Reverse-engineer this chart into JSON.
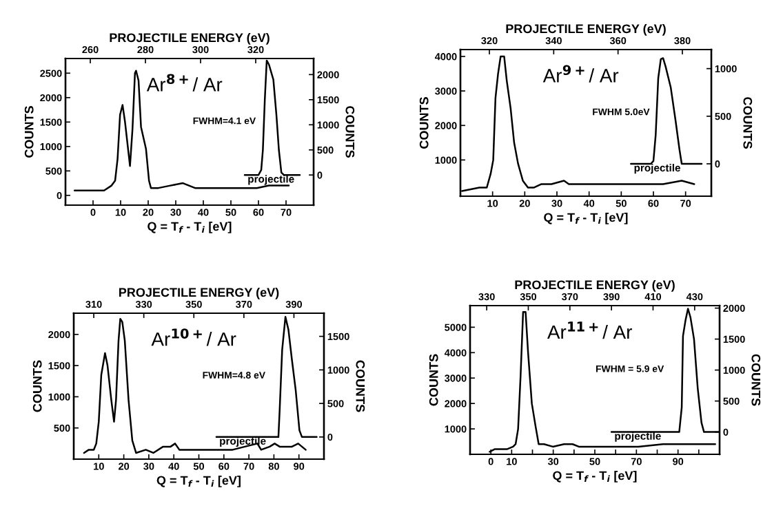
{
  "chart_data": [
    {
      "type": "line",
      "title": "Ar$^{8+}$/ Ar",
      "xlabel": "Q = T$_{f}$ - T$_{i}$ [eV]",
      "ylabel": "COUNTS",
      "y2label": "COUNTS",
      "x2label": "PROJECTILE ENERGY (eV)",
      "annotations": [
        "FWHM=4.1 eV"
      ],
      "xlim": [
        -10,
        80
      ],
      "xticks": [
        0,
        10,
        20,
        30,
        40,
        50,
        60,
        70
      ],
      "ylim": [
        -200,
        2800
      ],
      "yticks": [
        0,
        500,
        1000,
        1500,
        2000,
        2500
      ],
      "y2lim": [
        -600,
        2320
      ],
      "y2ticks": [
        0,
        500,
        1000,
        1500,
        2000
      ],
      "x2lim": [
        251,
        341
      ],
      "x2ticks": [
        260,
        280,
        300,
        320
      ],
      "series": [
        {
          "color": "#000000",
          "x": [
            -6.7,
            0,
            4,
            6.7,
            8,
            8.9,
            9.8,
            10.7,
            11.6,
            13.4,
            14.3,
            15.2,
            15.6,
            16.5,
            17.4,
            19.2,
            20.3,
            21,
            23.7,
            28,
            32.6,
            37,
            41.5,
            46,
            50.4,
            55,
            59.4,
            63.8,
            71
          ],
          "values": [
            100,
            100,
            100,
            200,
            300,
            750,
            1650,
            1850,
            1500,
            600,
            1350,
            2500,
            2550,
            2350,
            1400,
            950,
            300,
            150,
            150,
            200,
            250,
            150,
            150,
            150,
            150,
            150,
            150,
            200,
            200
          ]
        },
        {
          "name": "projectile",
          "axis": "y2",
          "color": "#000000",
          "x": [
            55,
            60,
            61,
            61.6,
            62.3,
            63,
            63.8,
            65.4,
            66.5,
            67.4,
            68.3,
            69.2,
            75
          ],
          "values": [
            0,
            0,
            100,
            500,
            1500,
            2280,
            2200,
            1900,
            1200,
            500,
            50,
            0,
            0
          ]
        }
      ]
    },
    {
      "type": "line",
      "title": "Ar$^{9+}$/ Ar",
      "xlabel": "Q = T$_{f}$ - T$_{i}$ [eV]",
      "ylabel": "COUNTS",
      "y2label": "COUNTS",
      "x2label": "PROJECTILE ENERGY (eV)",
      "annotations": [
        "FWHM 5.0eV"
      ],
      "xlim": [
        0,
        78
      ],
      "xticks": [
        10,
        20,
        30,
        40,
        50,
        60,
        70
      ],
      "ylim": [
        -50,
        4200
      ],
      "yticks": [
        1000,
        2000,
        3000,
        4000
      ],
      "y2lim": [
        -340,
        1200
      ],
      "y2ticks": [
        0,
        500,
        1000
      ],
      "x2lim": [
        311,
        389
      ],
      "x2ticks": [
        320,
        340,
        360,
        380
      ],
      "series": [
        {
          "color": "#000000",
          "x": [
            0.5,
            5.9,
            8.2,
            9.4,
            10.2,
            10.9,
            11.7,
            12.5,
            13.6,
            14.4,
            15.6,
            16.7,
            17.9,
            19.4,
            21,
            22.9,
            25.2,
            28.3,
            32.2,
            33.7,
            36.8,
            39.9,
            43.7,
            47.6,
            55.3,
            63,
            68.8,
            72.7
          ],
          "values": [
            100,
            200,
            200,
            600,
            1000,
            2800,
            3500,
            4000,
            4000,
            3300,
            2500,
            1500,
            900,
            400,
            200,
            200,
            300,
            300,
            400,
            300,
            300,
            300,
            300,
            300,
            300,
            300,
            400,
            300
          ]
        },
        {
          "name": "projectile",
          "axis": "y2",
          "color": "#000000",
          "x": [
            53,
            59.2,
            60,
            60.7,
            61.5,
            62.3,
            63,
            63.8,
            65.4,
            66.9,
            68.1,
            68.8,
            75
          ],
          "values": [
            0,
            0,
            30,
            300,
            900,
            1100,
            1110,
            1020,
            800,
            450,
            150,
            0,
            0
          ]
        }
      ]
    },
    {
      "type": "line",
      "title": "Ar$^{10+}$/ Ar",
      "xlabel": "Q = T$_{f}$ - T$_{i}$ [eV]",
      "ylabel": "COUNTS",
      "y2label": "COUNTS",
      "x2label": "PROJECTILE ENERGY (eV)",
      "annotations": [
        "FWHM=4.8 eV"
      ],
      "xlim": [
        0,
        100
      ],
      "xticks": [
        10,
        20,
        30,
        40,
        50,
        60,
        70,
        80,
        90
      ],
      "ylim": [
        0,
        2340
      ],
      "yticks": [
        500,
        1000,
        1500,
        2000
      ],
      "y2lim": [
        -330,
        1845
      ],
      "y2ticks": [
        0,
        500,
        1000,
        1500
      ],
      "x2lim": [
        302,
        402
      ],
      "x2ticks": [
        310,
        330,
        350,
        370,
        390
      ],
      "series": [
        {
          "color": "#000000",
          "x": [
            4.1,
            6,
            8,
            9,
            10,
            11,
            12.5,
            13.5,
            15,
            16.1,
            16.9,
            17.9,
            18.6,
            19.4,
            20.4,
            21.9,
            23.4,
            24.9,
            28.8,
            31.8,
            35.7,
            38.7,
            40.5,
            42.2,
            46.6,
            53.6,
            58.5,
            63.5,
            68.4,
            73.4,
            74.9,
            78.3,
            80.3,
            82.3,
            85.2,
            87.2,
            89.7,
            91.2,
            92.7
          ],
          "values": [
            100,
            150,
            150,
            250,
            600,
            1350,
            1700,
            1500,
            950,
            600,
            950,
            1900,
            2250,
            2200,
            1900,
            950,
            300,
            100,
            150,
            100,
            200,
            200,
            250,
            150,
            150,
            150,
            150,
            150,
            200,
            250,
            150,
            200,
            250,
            200,
            200,
            200,
            250,
            200,
            150
          ]
        },
        {
          "name": "projectile",
          "axis": "y2",
          "color": "#000000",
          "x": [
            57,
            81.8,
            82.3,
            83.3,
            84.6,
            85.8,
            87.2,
            88.7,
            90.2,
            91.2,
            97.1
          ],
          "values": [
            0,
            0,
            400,
            1300,
            1790,
            1600,
            1150,
            700,
            100,
            0,
            0
          ]
        }
      ]
    },
    {
      "type": "line",
      "title": "Ar$^{11+}$/ Ar",
      "xlabel": "Q = T$_{f}$ - T$_{i}$ [eV]",
      "ylabel": "COUNTS",
      "y2label": "COUNTS",
      "x2label": "PROJECTILE ENERGY (eV)",
      "annotations": [
        "FWHM = 5.9 eV"
      ],
      "xlim": [
        -10,
        110
      ],
      "xticks": [
        0,
        10,
        {
          "value": 20,
          "label": null
        },
        30,
        {
          "value": 40,
          "label": null
        },
        50,
        {
          "value": 60,
          "label": null
        },
        70,
        {
          "value": 80,
          "label": null
        },
        90,
        {
          "value": 100,
          "label": null
        }
      ],
      "ylim": [
        0,
        5850
      ],
      "yticks": [
        1000,
        2000,
        3000,
        4000,
        5000
      ],
      "y2lim": [
        -360,
        2040
      ],
      "y2ticks": [
        0,
        500,
        1000,
        1500,
        2000
      ],
      "x2lim": [
        322,
        442
      ],
      "x2ticks": [
        330,
        350,
        370,
        390,
        410,
        430
      ],
      "series": [
        {
          "color": "#000000",
          "x": [
            -0.6,
            1.8,
            5.4,
            7.7,
            10.7,
            11.9,
            13.1,
            14.3,
            15.5,
            16.7,
            17.9,
            19.7,
            21.5,
            23,
            25.6,
            29.8,
            35.2,
            39.3,
            42.3,
            47.1,
            53,
            56.6,
            59,
            70.9,
            82.8,
            88.8,
            94.8,
            107.9
          ],
          "values": [
            100,
            200,
            200,
            200,
            300,
            400,
            1000,
            3100,
            5600,
            5600,
            4000,
            2000,
            1100,
            400,
            400,
            300,
            400,
            400,
            300,
            300,
            300,
            300,
            300,
            300,
            400,
            400,
            400,
            400
          ]
        },
        {
          "name": "projectile",
          "axis": "y2",
          "color": "#000000",
          "x": [
            58,
            90.6,
            91.8,
            92.4,
            93.6,
            94.8,
            96,
            97.7,
            99.5,
            101.3,
            102.5,
            110
          ],
          "values": [
            0,
            0,
            400,
            1550,
            1800,
            1990,
            1850,
            1500,
            700,
            150,
            0,
            0
          ]
        }
      ]
    }
  ]
}
